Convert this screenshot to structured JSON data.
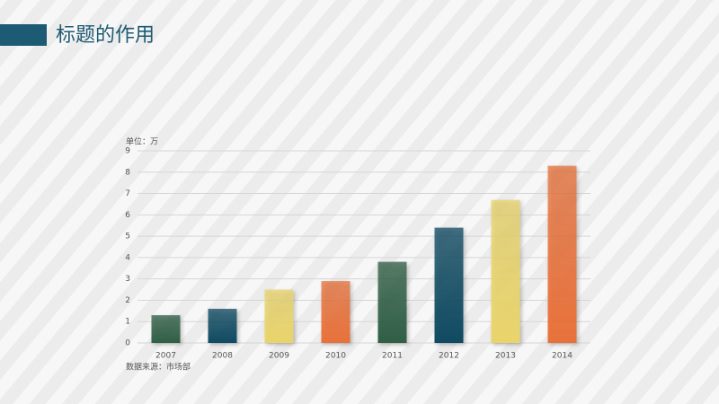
{
  "header": {
    "title": "标题的作用"
  },
  "chart_data": {
    "type": "bar",
    "unit_label": "单位：万",
    "source": "数据来源：市场部",
    "categories": [
      "2007",
      "2008",
      "2009",
      "2010",
      "2011",
      "2012",
      "2013",
      "2014"
    ],
    "values": [
      1.3,
      1.6,
      2.5,
      2.9,
      3.8,
      5.4,
      6.7,
      8.3
    ],
    "colors": [
      "#2f5e45",
      "#0f4a62",
      "#e9d46a",
      "#e8713a",
      "#2f5e45",
      "#0f4a62",
      "#e9d46a",
      "#e8713a"
    ],
    "ylim": [
      0,
      9
    ],
    "yticks": [
      0,
      1,
      2,
      3,
      4,
      5,
      6,
      7,
      8,
      9
    ],
    "grid": true
  }
}
